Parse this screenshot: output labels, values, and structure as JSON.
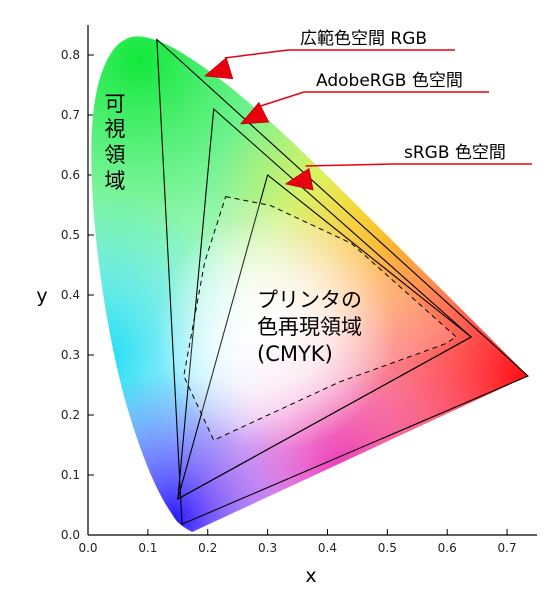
{
  "chart_data": {
    "type": "diagram",
    "xlabel": "x",
    "ylabel": "y",
    "xlim": [
      0.0,
      0.75
    ],
    "ylim": [
      0.0,
      0.85
    ],
    "xticks": [
      "0.0",
      "0.1",
      "0.2",
      "0.3",
      "0.4",
      "0.5",
      "0.6",
      "0.7"
    ],
    "yticks": [
      "0.0",
      "0.1",
      "0.2",
      "0.3",
      "0.4",
      "0.5",
      "0.6",
      "0.7",
      "0.8"
    ],
    "visible_region_label": [
      "可",
      "視",
      "領",
      "域"
    ],
    "spectral_locus": [
      [
        0.174,
        0.005
      ],
      [
        0.165,
        0.01
      ],
      [
        0.15,
        0.02
      ],
      [
        0.14,
        0.035
      ],
      [
        0.124,
        0.06
      ],
      [
        0.1,
        0.11
      ],
      [
        0.068,
        0.2
      ],
      [
        0.044,
        0.295
      ],
      [
        0.023,
        0.41
      ],
      [
        0.008,
        0.54
      ],
      [
        0.004,
        0.66
      ],
      [
        0.014,
        0.75
      ],
      [
        0.04,
        0.812
      ],
      [
        0.074,
        0.834
      ],
      [
        0.114,
        0.826
      ],
      [
        0.155,
        0.806
      ],
      [
        0.23,
        0.754
      ],
      [
        0.302,
        0.692
      ],
      [
        0.373,
        0.625
      ],
      [
        0.444,
        0.555
      ],
      [
        0.512,
        0.487
      ],
      [
        0.576,
        0.424
      ],
      [
        0.627,
        0.373
      ],
      [
        0.666,
        0.334
      ],
      [
        0.735,
        0.265
      ]
    ],
    "gamuts": [
      {
        "name": "広範色空間 RGB",
        "points": [
          [
            0.735,
            0.265
          ],
          [
            0.115,
            0.826
          ],
          [
            0.157,
            0.018
          ]
        ],
        "pointer": [
          0.195,
          0.765
        ]
      },
      {
        "name": "AdobeRGB 色空間",
        "points": [
          [
            0.64,
            0.33
          ],
          [
            0.21,
            0.71
          ],
          [
            0.15,
            0.06
          ]
        ],
        "pointer": [
          0.255,
          0.685
        ]
      },
      {
        "name": "sRGB 色空間",
        "points": [
          [
            0.64,
            0.33
          ],
          [
            0.3,
            0.6
          ],
          [
            0.15,
            0.06
          ]
        ],
        "pointer": [
          0.33,
          0.585
        ]
      }
    ],
    "cmyk_region": {
      "label_lines": [
        "プリンタの",
        "色再現領域",
        "(CMYK)"
      ],
      "points": [
        [
          0.23,
          0.564
        ],
        [
          0.305,
          0.549
        ],
        [
          0.44,
          0.486
        ],
        [
          0.615,
          0.33
        ],
        [
          0.595,
          0.318
        ],
        [
          0.42,
          0.255
        ],
        [
          0.21,
          0.158
        ],
        [
          0.16,
          0.265
        ],
        [
          0.195,
          0.455
        ]
      ]
    },
    "white_point": [
      0.3127,
      0.329
    ],
    "colors": {
      "pointer_arrow": "#e8000e",
      "gamut_stroke": "#000000",
      "locus_green": "#22e040",
      "locus_blue": "#2a26ff",
      "locus_red": "#ff1010"
    }
  }
}
